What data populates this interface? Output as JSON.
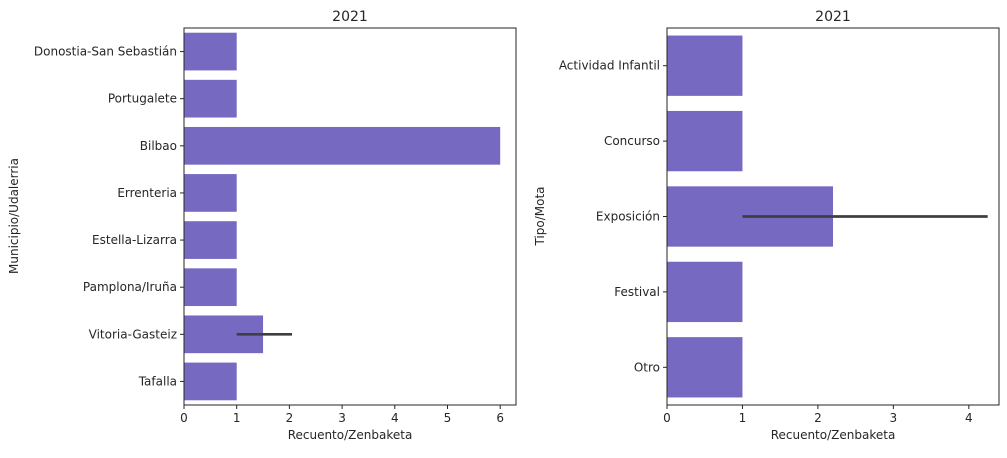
{
  "chart_data": [
    {
      "type": "bar",
      "orientation": "horizontal",
      "title": "2021",
      "xlabel": "Recuento/Zenbaketa",
      "ylabel": "Municipio/Udalerria",
      "xlim": [
        0,
        6.3
      ],
      "xticks": [
        0,
        1,
        2,
        3,
        4,
        5,
        6
      ],
      "categories": [
        "Donostia-San Sebastián",
        "Portugalete",
        "Bilbao",
        "Errenteria",
        "Estella-Lizarra",
        "Pamplona/Iruña",
        "Vitoria-Gasteiz",
        "Tafalla"
      ],
      "values": [
        1,
        1,
        6,
        1,
        1,
        1,
        1.5,
        1
      ],
      "error_bars": [
        null,
        null,
        null,
        null,
        null,
        null,
        [
          1,
          2.05
        ],
        null
      ],
      "color": "#7569c2",
      "grid": false,
      "legend": "none"
    },
    {
      "type": "bar",
      "orientation": "horizontal",
      "title": "2021",
      "xlabel": "Recuento/Zenbaketa",
      "ylabel": "Tipo/Mota",
      "xlim": [
        0,
        4.4
      ],
      "xticks": [
        0,
        1,
        2,
        3,
        4
      ],
      "categories": [
        "Actividad Infantil",
        "Concurso",
        "Exposición",
        "Festival",
        "Otro"
      ],
      "values": [
        1,
        1,
        2.2,
        1,
        1
      ],
      "error_bars": [
        null,
        null,
        [
          1,
          4.25
        ],
        null,
        null
      ],
      "color": "#7569c2",
      "grid": false,
      "legend": "none"
    }
  ]
}
